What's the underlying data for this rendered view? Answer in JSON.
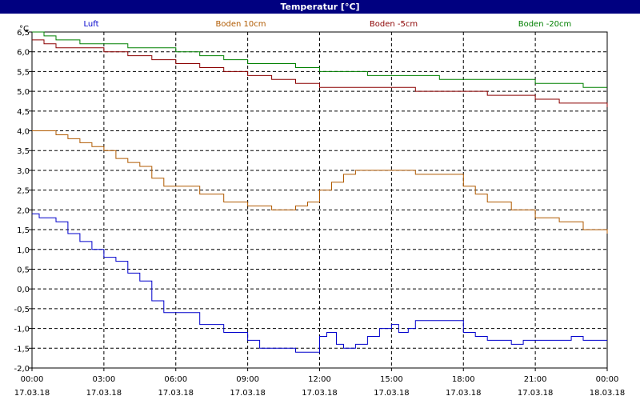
{
  "window": {
    "title": "Temperatur [°C]"
  },
  "chart_data": {
    "type": "line",
    "title": "Temperatur [°C]",
    "ylabel": "°C",
    "xlabel": "",
    "ylim": [
      -2.0,
      6.5
    ],
    "xlim": [
      0,
      24
    ],
    "grid": true,
    "legend_placement": "top",
    "y_ticks": [
      "6,5",
      "6,0",
      "5,5",
      "5,0",
      "4,5",
      "4,0",
      "3,5",
      "3,0",
      "2,5",
      "2,0",
      "1,5",
      "1,0",
      "0,5",
      "0,0",
      "-0,5",
      "-1,0",
      "-1,5",
      "-2,0"
    ],
    "x_ticks": [
      {
        "time": "00:00",
        "date": "17.03.18"
      },
      {
        "time": "03:00",
        "date": "17.03.18"
      },
      {
        "time": "06:00",
        "date": "17.03.18"
      },
      {
        "time": "09:00",
        "date": "17.03.18"
      },
      {
        "time": "12:00",
        "date": "17.03.18"
      },
      {
        "time": "15:00",
        "date": "17.03.18"
      },
      {
        "time": "18:00",
        "date": "17.03.18"
      },
      {
        "time": "21:00",
        "date": "17.03.18"
      },
      {
        "time": "00:00",
        "date": "18.03.18"
      }
    ],
    "series": [
      {
        "name": "Luft",
        "color": "#0000cc",
        "x": [
          0,
          0.3,
          1,
          1.5,
          2,
          2.5,
          3,
          3.5,
          4,
          4.5,
          5,
          5.5,
          6,
          7,
          8,
          9,
          9.5,
          10,
          11,
          12,
          12.3,
          12.7,
          13,
          13.5,
          14,
          14.5,
          15,
          15.3,
          15.7,
          16,
          17,
          18,
          18.5,
          19,
          20,
          20.5,
          21,
          22,
          22.5,
          23,
          24
        ],
        "y": [
          1.9,
          1.8,
          1.7,
          1.4,
          1.2,
          1.0,
          0.8,
          0.7,
          0.4,
          0.2,
          -0.3,
          -0.6,
          -0.6,
          -0.9,
          -1.1,
          -1.3,
          -1.5,
          -1.5,
          -1.6,
          -1.2,
          -1.1,
          -1.4,
          -1.5,
          -1.4,
          -1.2,
          -1.0,
          -0.9,
          -1.1,
          -1.0,
          -0.8,
          -0.8,
          -1.1,
          -1.2,
          -1.3,
          -1.4,
          -1.3,
          -1.3,
          -1.3,
          -1.2,
          -1.3,
          -1.3
        ]
      },
      {
        "name": "Boden 10cm",
        "color": "#b05a00",
        "x": [
          0,
          0.5,
          1,
          1.5,
          2,
          2.5,
          3,
          3.5,
          4,
          4.5,
          5,
          5.5,
          6,
          7,
          8,
          9,
          9.5,
          10,
          11,
          11.5,
          12,
          12.5,
          13,
          13.5,
          14,
          15,
          15.5,
          16,
          17,
          18,
          18.5,
          19,
          20,
          21,
          22,
          23,
          24
        ],
        "y": [
          4.0,
          4.0,
          3.9,
          3.8,
          3.7,
          3.6,
          3.5,
          3.3,
          3.2,
          3.1,
          2.8,
          2.6,
          2.6,
          2.4,
          2.2,
          2.1,
          2.1,
          2.0,
          2.1,
          2.2,
          2.5,
          2.7,
          2.9,
          3.0,
          3.0,
          3.0,
          3.0,
          2.9,
          2.9,
          2.6,
          2.4,
          2.2,
          2.0,
          1.8,
          1.7,
          1.5,
          1.4
        ]
      },
      {
        "name": "Boden -5cm",
        "color": "#8b0000",
        "x": [
          0,
          0.5,
          1,
          2,
          3,
          4,
          5,
          6,
          7,
          8,
          9,
          10,
          11,
          12,
          13,
          14,
          15,
          16,
          17,
          18,
          19,
          20,
          21,
          22,
          23,
          24
        ],
        "y": [
          6.3,
          6.2,
          6.1,
          6.1,
          6.0,
          5.9,
          5.8,
          5.7,
          5.6,
          5.5,
          5.4,
          5.3,
          5.2,
          5.1,
          5.1,
          5.1,
          5.1,
          5.0,
          5.0,
          5.0,
          4.9,
          4.9,
          4.8,
          4.7,
          4.7,
          4.6
        ]
      },
      {
        "name": "Boden -20cm",
        "color": "#008000",
        "x": [
          0,
          0.5,
          1,
          2,
          3,
          4,
          5,
          6,
          7,
          8,
          9,
          10,
          11,
          12,
          13,
          14,
          15,
          16,
          17,
          18,
          19,
          20,
          21,
          22,
          23,
          24
        ],
        "y": [
          6.5,
          6.4,
          6.3,
          6.2,
          6.2,
          6.1,
          6.1,
          6.0,
          5.9,
          5.8,
          5.7,
          5.7,
          5.6,
          5.5,
          5.5,
          5.4,
          5.4,
          5.4,
          5.3,
          5.3,
          5.3,
          5.3,
          5.2,
          5.2,
          5.1,
          5.1
        ]
      }
    ]
  }
}
